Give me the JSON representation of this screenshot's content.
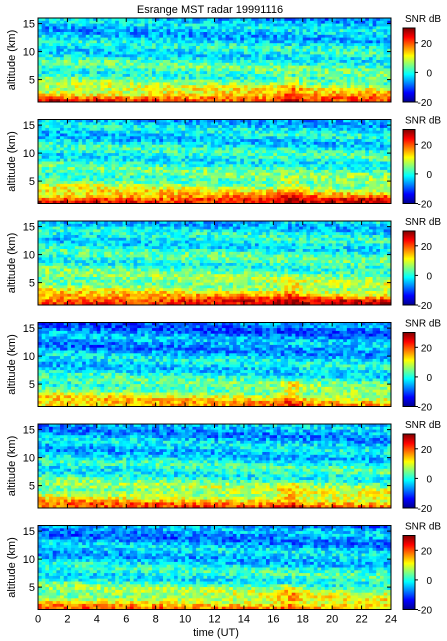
{
  "chart_data": {
    "type": "heatmap",
    "title": "Esrange MST radar 19991116",
    "xlabel": "time (UT)",
    "ylabel": "altitude (km)",
    "xlim": [
      0,
      24
    ],
    "ylim": [
      1,
      16
    ],
    "xticks": [
      0,
      2,
      4,
      6,
      8,
      10,
      12,
      14,
      16,
      18,
      20,
      22,
      24
    ],
    "yticks": [
      5,
      10,
      15
    ],
    "colorbar": {
      "label": "SNR dB",
      "range": [
        -20,
        30
      ],
      "ticks": [
        -20,
        0,
        20
      ],
      "colors": [
        "#00008f",
        "#0000ff",
        "#0080ff",
        "#00ffff",
        "#80ff80",
        "#ffff00",
        "#ff8000",
        "#ff0000",
        "#800000"
      ]
    },
    "panel_count": 6,
    "panels": [
      {
        "panel": 1,
        "altitude_km": [
          16,
          14,
          12,
          10,
          8,
          6,
          4,
          2.5,
          1.5
        ],
        "mean_snr_db": [
          -5,
          -4,
          -3,
          -1,
          1,
          2,
          6,
          12,
          22
        ]
      },
      {
        "panel": 2,
        "altitude_km": [
          16,
          14,
          12,
          10,
          8,
          6,
          4,
          2.5,
          1.5
        ],
        "mean_snr_db": [
          -4,
          -3,
          -2,
          0,
          1,
          3,
          7,
          13,
          25
        ]
      },
      {
        "panel": 3,
        "altitude_km": [
          16,
          14,
          12,
          10,
          8,
          6,
          4,
          2.5,
          1.5
        ],
        "mean_snr_db": [
          -3,
          -2,
          -1,
          1,
          2,
          4,
          8,
          14,
          24
        ]
      },
      {
        "panel": 4,
        "altitude_km": [
          16,
          14,
          12,
          10,
          8,
          6,
          4,
          2.5,
          1.5
        ],
        "mean_snr_db": [
          -8,
          -7,
          -6,
          -4,
          -2,
          0,
          5,
          11,
          14
        ]
      },
      {
        "panel": 5,
        "altitude_km": [
          16,
          14,
          12,
          10,
          8,
          6,
          4,
          2.5,
          1.5
        ],
        "mean_snr_db": [
          -6,
          -5,
          -4,
          -2,
          0,
          2,
          7,
          12,
          18
        ]
      },
      {
        "panel": 6,
        "altitude_km": [
          16,
          14,
          12,
          10,
          8,
          6,
          4,
          2.5,
          1.5
        ],
        "mean_snr_db": [
          -7,
          -6,
          -5,
          -3,
          -1,
          1,
          6,
          11,
          16
        ]
      }
    ]
  }
}
